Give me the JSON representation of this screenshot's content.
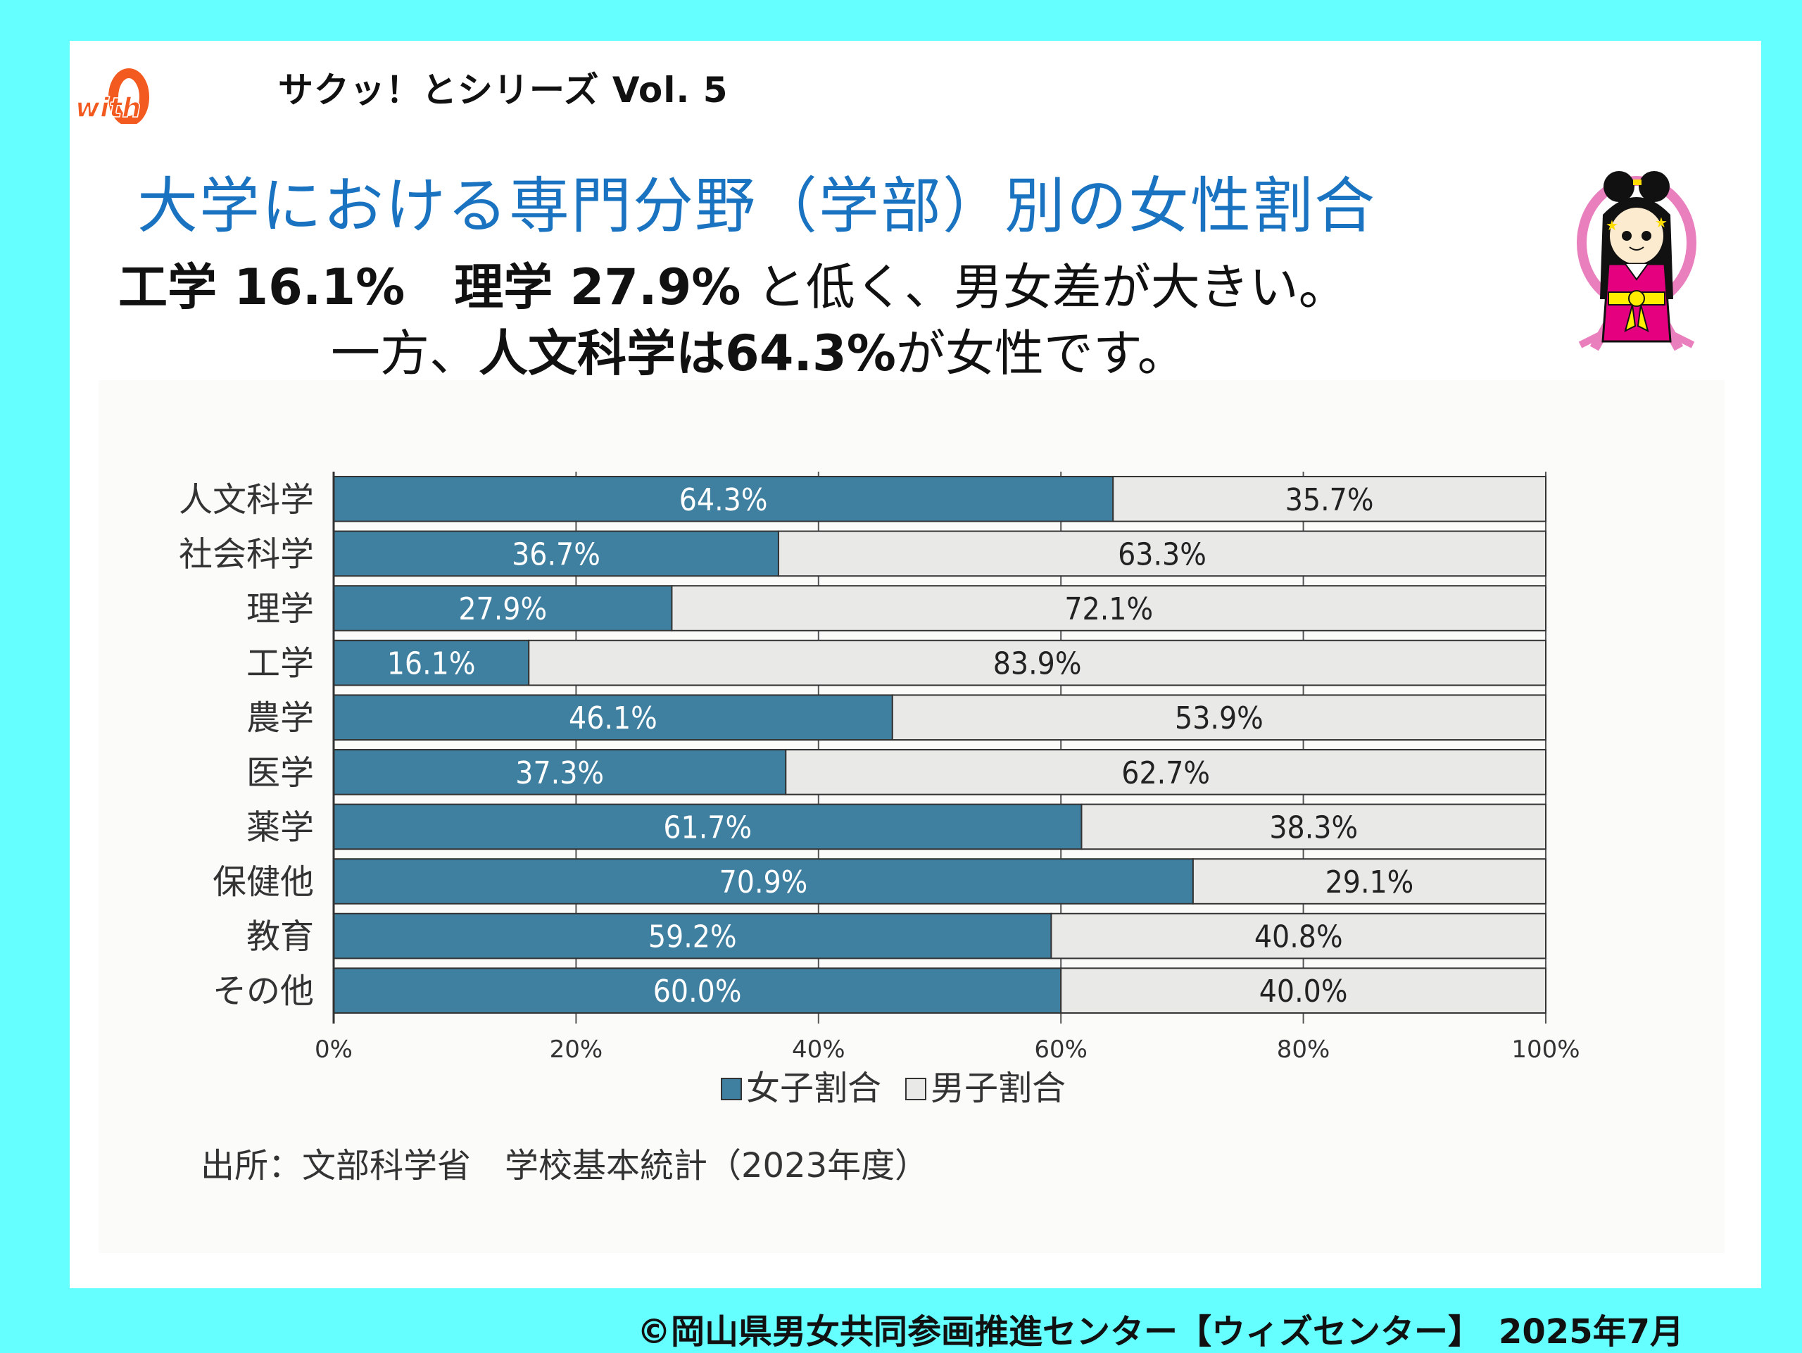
{
  "header": {
    "series_label": "サクッ！とシリーズ Vol. 5",
    "logo_text": "with"
  },
  "title": "大学における専門分野（学部）別の女性割合",
  "summary": {
    "line1": [
      {
        "text": "工学 16.1%",
        "bold": true
      },
      {
        "text": "　",
        "bold": false
      },
      {
        "text": "理学 27.9%",
        "bold": true
      },
      {
        "text": " と低く、男女差が大きい。",
        "bold": false
      }
    ],
    "line2": [
      {
        "text": "一方、",
        "bold": false
      },
      {
        "text": "人文科学は64.3%",
        "bold": true
      },
      {
        "text": "が女性です。",
        "bold": false
      }
    ]
  },
  "colors": {
    "background": "#66ffff",
    "title": "#1a73c0",
    "female_bar": "#3f7f9f",
    "male_bar": "#e9e9e7"
  },
  "chart_data": {
    "type": "bar",
    "orientation": "horizontal",
    "stacked": true,
    "categories": [
      "人文科学",
      "社会科学",
      "理学",
      "工学",
      "農学",
      "医学",
      "薬学",
      "保健他",
      "教育",
      "その他"
    ],
    "series": [
      {
        "name": "女子割合",
        "values": [
          64.3,
          36.7,
          27.9,
          16.1,
          46.1,
          37.3,
          61.7,
          70.9,
          59.2,
          60.0
        ]
      },
      {
        "name": "男子割合",
        "values": [
          35.7,
          63.3,
          72.1,
          83.9,
          53.9,
          62.7,
          38.3,
          29.1,
          40.8,
          40.0
        ]
      }
    ],
    "value_labels_female": [
      "64.3%",
      "36.7%",
      "27.9%",
      "16.1%",
      "46.1%",
      "37.3%",
      "61.7%",
      "70.9%",
      "59.2%",
      "60.0%"
    ],
    "value_labels_male": [
      "35.7%",
      "63.3%",
      "72.1%",
      "83.9%",
      "53.9%",
      "62.7%",
      "38.3%",
      "29.1%",
      "40.8%",
      "40.0%"
    ],
    "x_ticks": [
      "0%",
      "20%",
      "40%",
      "60%",
      "80%",
      "100%"
    ],
    "xlim": [
      0,
      100
    ],
    "xlabel": "",
    "ylabel": "",
    "legend": [
      "女子割合",
      "男子割合"
    ],
    "legend_position": "bottom",
    "grid": true,
    "source": "出所：文部科学省　学校基本統計（2023年度）"
  },
  "footer": "©岡山県男女共同参画推進センター【ウィズセンター】　2025年7月"
}
